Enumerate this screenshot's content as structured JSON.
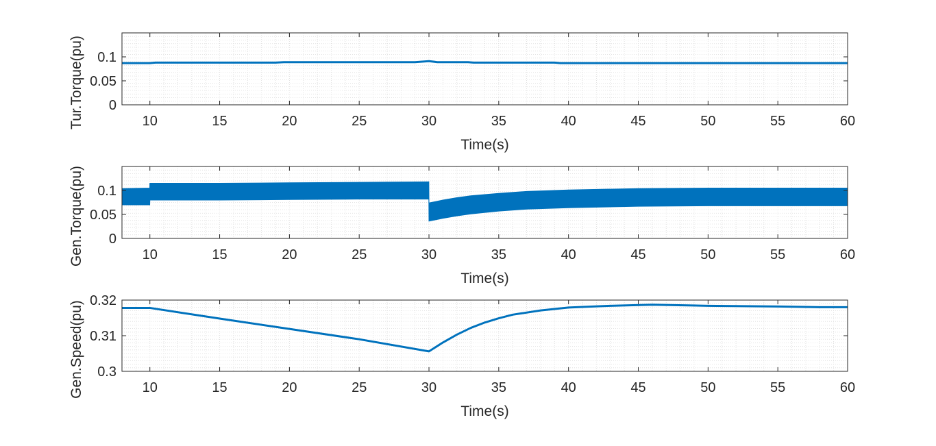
{
  "figure": {
    "background": "#ffffff",
    "line_color": "#0072BD",
    "axis_color": "#262626",
    "grid_color": "#dcdcdc"
  },
  "chart_data": [
    {
      "type": "line",
      "xlabel": "Time(s)",
      "ylabel": "Tur.Torque(pu)",
      "xlim": [
        8,
        60
      ],
      "ylim": [
        0,
        0.15
      ],
      "xticks": [
        10,
        15,
        20,
        25,
        30,
        35,
        40,
        45,
        50,
        55,
        60
      ],
      "yticks": [
        0,
        0.05,
        0.1
      ],
      "ytick_labels": [
        "0",
        "0.05",
        "0.1"
      ],
      "grid": "minor",
      "series": [
        {
          "style": "line",
          "x": [
            8,
            10,
            10.4,
            19,
            19.6,
            29,
            30,
            30.6,
            32.8,
            33.2,
            39,
            39.4,
            60
          ],
          "y": [
            0.087,
            0.087,
            0.088,
            0.088,
            0.089,
            0.089,
            0.091,
            0.089,
            0.089,
            0.088,
            0.088,
            0.087,
            0.087
          ]
        }
      ]
    },
    {
      "type": "area",
      "xlabel": "Time(s)",
      "ylabel": "Gen.Torque(pu)",
      "xlim": [
        8,
        60
      ],
      "ylim": [
        0,
        0.15
      ],
      "xticks": [
        10,
        15,
        20,
        25,
        30,
        35,
        40,
        45,
        50,
        55,
        60
      ],
      "yticks": [
        0,
        0.05,
        0.1
      ],
      "ytick_labels": [
        "0",
        "0.05",
        "0.1"
      ],
      "grid": "minor",
      "series": [
        {
          "style": "band",
          "x": [
            8,
            9.99,
            10,
            15,
            20,
            25,
            29.99,
            30,
            31,
            32,
            33,
            35,
            37,
            40,
            45,
            50,
            55,
            60
          ],
          "upper": [
            0.104,
            0.105,
            0.115,
            0.115,
            0.116,
            0.117,
            0.118,
            0.074,
            0.08,
            0.085,
            0.089,
            0.094,
            0.098,
            0.101,
            0.104,
            0.105,
            0.105,
            0.105
          ],
          "lower": [
            0.07,
            0.07,
            0.08,
            0.08,
            0.081,
            0.082,
            0.082,
            0.036,
            0.042,
            0.047,
            0.051,
            0.057,
            0.061,
            0.064,
            0.067,
            0.068,
            0.068,
            0.068
          ]
        }
      ]
    },
    {
      "type": "line",
      "xlabel": "Time(s)",
      "ylabel": "Gen.Speed(pu)",
      "xlim": [
        8,
        60
      ],
      "ylim": [
        0.3,
        0.32
      ],
      "xticks": [
        10,
        15,
        20,
        25,
        30,
        35,
        40,
        45,
        50,
        55,
        60
      ],
      "yticks": [
        0.3,
        0.31,
        0.32
      ],
      "ytick_labels": [
        "0.3",
        "0.31",
        "0.32"
      ],
      "grid": "minor",
      "series": [
        {
          "style": "line",
          "x": [
            8,
            10,
            15,
            20,
            25,
            30,
            31,
            32,
            33,
            34,
            35,
            36,
            38,
            40,
            43,
            46,
            50,
            55,
            58,
            60
          ],
          "y": [
            0.3178,
            0.3178,
            0.3148,
            0.3119,
            0.309,
            0.3056,
            0.3081,
            0.3103,
            0.3122,
            0.3137,
            0.3149,
            0.3159,
            0.3171,
            0.3179,
            0.3184,
            0.3187,
            0.3184,
            0.3182,
            0.318,
            0.318
          ]
        }
      ]
    }
  ]
}
